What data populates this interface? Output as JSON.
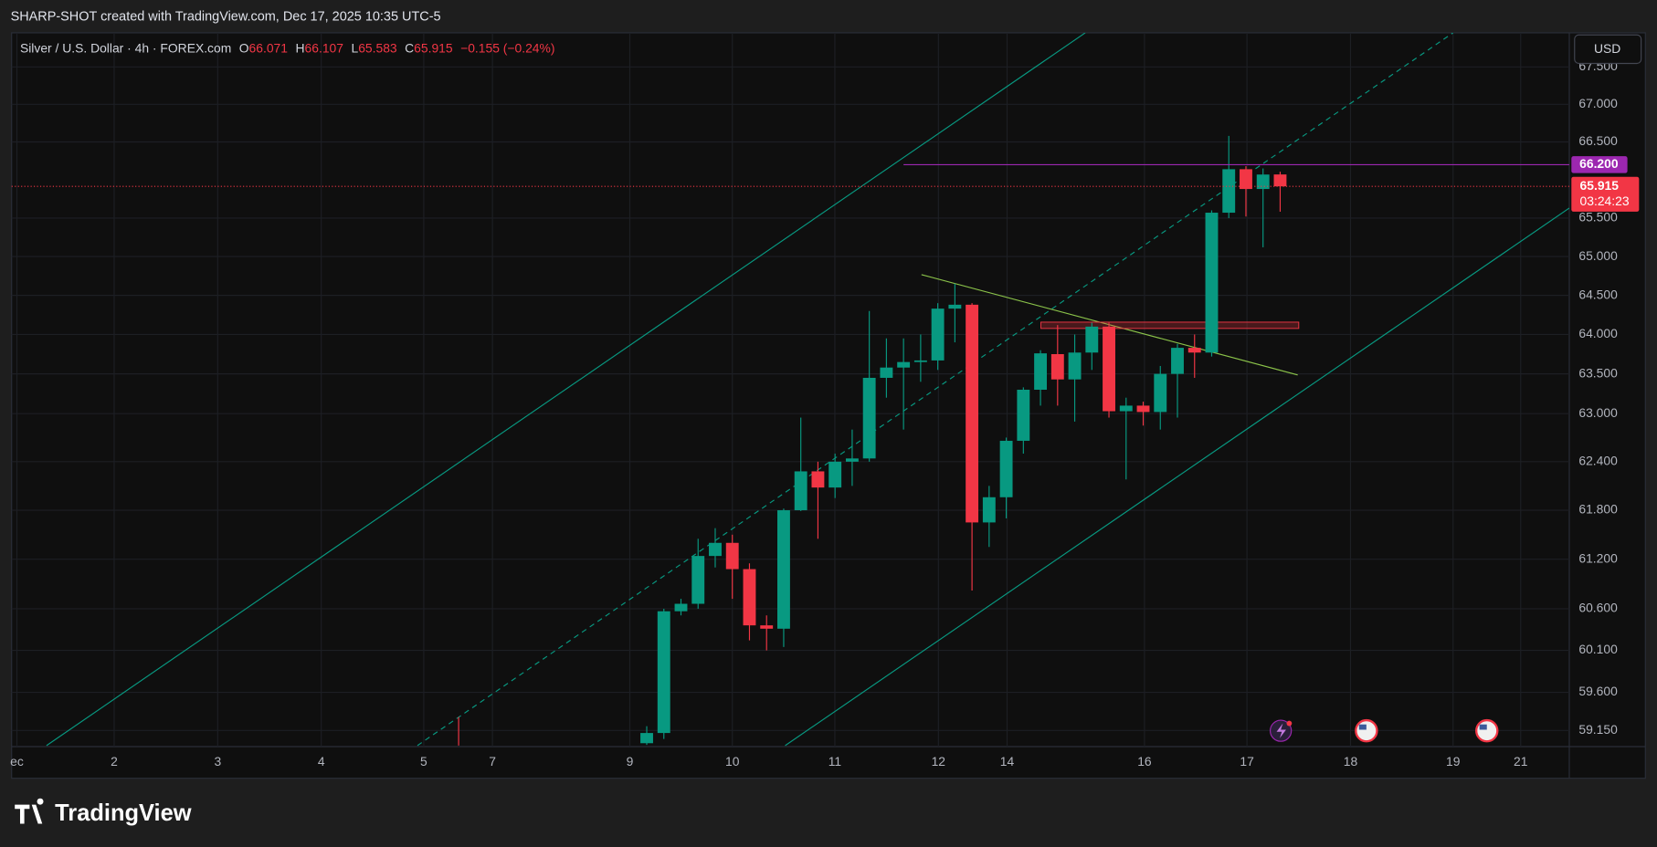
{
  "header": {
    "title": "SHARP-SHOT created with TradingView.com, Dec 17, 2025 10:35 UTC-5"
  },
  "chart_data": {
    "type": "candlestick",
    "title": "Silver / U.S. Dollar · 4h · FOREX.com",
    "legend_labels": {
      "open": "O",
      "high": "H",
      "low": "L",
      "close": "C"
    },
    "change_label": "−0.155 (−0.24%)",
    "currency": "USD",
    "up_color": "#089981",
    "down_color": "#f23645",
    "open": [
      59.0,
      59.12,
      60.57,
      60.66,
      61.24,
      61.4,
      61.08,
      60.4,
      60.36,
      61.8,
      62.28,
      62.08,
      62.4,
      62.44,
      63.45,
      63.58,
      63.65,
      63.67,
      64.33,
      64.38,
      61.65,
      61.96,
      62.66,
      63.3,
      63.75,
      63.43,
      63.77,
      64.1,
      63.03,
      63.1,
      63.02,
      63.5,
      63.83,
      63.77,
      65.57,
      66.14,
      65.88,
      66.071
    ],
    "high": [
      59.2,
      60.6,
      60.72,
      61.45,
      61.58,
      61.5,
      61.15,
      60.52,
      61.82,
      62.95,
      62.4,
      62.5,
      62.8,
      64.3,
      63.95,
      63.95,
      64.0,
      64.4,
      64.65,
      64.4,
      62.1,
      62.7,
      63.33,
      63.8,
      64.12,
      64.0,
      64.15,
      64.15,
      63.2,
      63.15,
      63.6,
      63.88,
      64.0,
      65.6,
      66.58,
      66.18,
      66.15,
      66.107
    ],
    "low": [
      58.98,
      59.05,
      60.52,
      60.6,
      61.1,
      60.72,
      60.22,
      60.1,
      60.14,
      61.79,
      61.45,
      61.95,
      62.1,
      62.4,
      63.2,
      62.8,
      63.4,
      63.55,
      63.9,
      60.82,
      61.35,
      61.7,
      62.5,
      63.1,
      63.1,
      62.9,
      63.55,
      62.95,
      62.18,
      62.85,
      62.8,
      62.95,
      63.45,
      63.72,
      65.5,
      65.52,
      65.12,
      65.583
    ],
    "close": [
      59.12,
      60.57,
      60.66,
      61.24,
      61.4,
      61.08,
      60.4,
      60.36,
      61.8,
      62.28,
      62.08,
      62.4,
      62.44,
      63.45,
      63.58,
      63.65,
      63.67,
      64.33,
      64.38,
      61.65,
      61.96,
      62.66,
      63.3,
      63.76,
      63.43,
      63.77,
      64.1,
      63.03,
      63.1,
      63.02,
      63.5,
      63.83,
      63.77,
      65.57,
      66.14,
      65.88,
      66.07,
      65.915
    ],
    "xtick_labels": [
      "ec",
      "2",
      "3",
      "4",
      "5",
      "7",
      "9",
      "10",
      "11",
      "12",
      "14",
      "16",
      "17",
      "18",
      "19",
      "21"
    ],
    "ylim": [
      58.96,
      67.96
    ],
    "log_scale": true,
    "grid": true,
    "yticks": [
      {
        "value": 59.15,
        "label": "59.150"
      },
      {
        "value": 59.6,
        "label": "59.600"
      },
      {
        "value": 60.1,
        "label": "60.100"
      },
      {
        "value": 60.6,
        "label": "60.600"
      },
      {
        "value": 61.2,
        "label": "61.200"
      },
      {
        "value": 61.8,
        "label": "61.800"
      },
      {
        "value": 62.4,
        "label": "62.400"
      },
      {
        "value": 63,
        "label": "63.000"
      },
      {
        "value": 63.5,
        "label": "63.500"
      },
      {
        "value": 64,
        "label": "64.000"
      },
      {
        "value": 64.5,
        "label": "64.500"
      },
      {
        "value": 65,
        "label": "65.000"
      },
      {
        "value": 65.5,
        "label": "65.500"
      },
      {
        "value": 66.5,
        "label": "66.500"
      },
      {
        "value": 67,
        "label": "67.000"
      },
      {
        "value": 67.5,
        "label": "67.500"
      }
    ],
    "horizontal_line": {
      "value": 66.2,
      "label": "66.200",
      "color": "#9c27b0"
    },
    "last_price_color": "#f23645",
    "countdown": "03:24:23"
  },
  "footer": {
    "logo": "TradingView"
  }
}
